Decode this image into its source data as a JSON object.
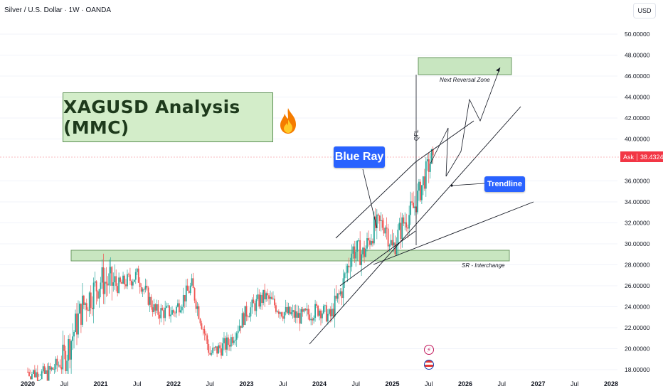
{
  "header": {
    "symbol_title": "Silver / U.S. Dollar · 1W · OANDA",
    "currency_button": "USD"
  },
  "price_axis": {
    "ticks": [
      "50.00000",
      "48.00000",
      "46.00000",
      "44.00000",
      "42.00000",
      "40.00000",
      "36.00000",
      "34.00000",
      "32.00000",
      "30.00000",
      "28.00000",
      "26.00000",
      "24.00000",
      "22.00000",
      "20.00000",
      "18.00000"
    ],
    "ask_label": "Ask",
    "ask_value": "38.43240"
  },
  "time_axis": {
    "labels": [
      "2020",
      "Jul",
      "2021",
      "Jul",
      "2022",
      "Jul",
      "2023",
      "Jul",
      "2024",
      "Jul",
      "2025",
      "Jul",
      "2026",
      "Jul",
      "2027",
      "Jul",
      "2028"
    ]
  },
  "annotations": {
    "title": "XAGUSD Analysis (MMC)",
    "blue_ray": "Blue Ray",
    "trendline": "Trendline",
    "next_reversal_zone": "Next Reversal Zone",
    "sr_interchange": "SR - Interchange",
    "qfl": "QFL"
  },
  "colors": {
    "bull": "#26a69a",
    "bear": "#ef5350",
    "zone_fill": "#c8e6c0",
    "callout": "#2962ff",
    "ask": "#f23645"
  },
  "icons": {
    "fire": "fire-icon",
    "lightning": "lightning-icon",
    "flag": "us-flag-icon"
  },
  "chart_data": {
    "type": "candlestick",
    "instrument": "XAGUSD",
    "timeframe": "1W",
    "ylim": [
      17.8,
      51
    ],
    "x": [
      2020.0,
      2020.25,
      2020.5,
      2020.75,
      2021.0,
      2021.25,
      2021.5,
      2021.75,
      2022.0,
      2022.25,
      2022.5,
      2022.75,
      2023.0,
      2023.25,
      2023.5,
      2023.75,
      2024.0,
      2024.15,
      2024.3,
      2024.45,
      2024.6,
      2024.75,
      2024.9,
      2025.0,
      2025.15,
      2025.3,
      2025.45,
      2025.55
    ],
    "close": [
      17.8,
      17.5,
      19.0,
      24.0,
      26.5,
      26.0,
      27.0,
      23.5,
      23.5,
      26.0,
      19.5,
      20.5,
      23.5,
      25.0,
      23.5,
      23.0,
      23.8,
      23.0,
      25.5,
      29.5,
      29.0,
      31.5,
      32.0,
      29.5,
      32.0,
      33.5,
      36.5,
      38.4
    ],
    "reversal_zone": [
      46.2,
      47.8
    ],
    "sr_zone": [
      28.6,
      29.5
    ],
    "last_price": 38.4324
  }
}
